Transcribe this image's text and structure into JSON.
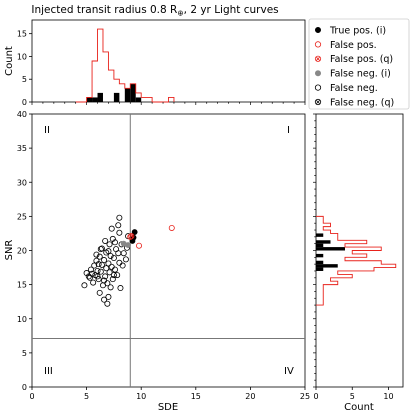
{
  "chart_data": {
    "type": "scatter",
    "title": "Injected transit radius 0.8 R⊕, 2 yr Light curves",
    "title_main": "Injected transit radius 0.8 R",
    "title_sub": "⊕",
    "title_tail": ", 2 yr Light curves",
    "main": {
      "xlabel": "SDE",
      "ylabel": "SNR",
      "xlim": [
        0,
        25
      ],
      "ylim": [
        0,
        40
      ],
      "xticks": [
        "0",
        "5",
        "10",
        "15",
        "20",
        "25"
      ],
      "yticks": [
        "0",
        "5",
        "10",
        "15",
        "20",
        "25",
        "30",
        "35",
        "40"
      ],
      "threshold_sde": 9.0,
      "threshold_snr": 7.1,
      "quadrant_labels": [
        "II",
        "I",
        "III",
        "IV"
      ]
    },
    "series": [
      {
        "name": "True pos. (i)",
        "marker": "filled",
        "color": "#000000",
        "points": [
          [
            9.2,
            21.4
          ],
          [
            9.3,
            21.9
          ],
          [
            9.4,
            22.7
          ]
        ]
      },
      {
        "name": "False pos.",
        "marker": "open",
        "color": "#e8221b",
        "points": [
          [
            9.0,
            22.0
          ],
          [
            9.8,
            20.7
          ],
          [
            12.8,
            23.3
          ]
        ]
      },
      {
        "name": "False pos. (q)",
        "marker": "x-open",
        "color": "#e8221b",
        "points": [
          [
            9.1,
            22.1
          ]
        ]
      },
      {
        "name": "False neg. (i)",
        "marker": "filled",
        "color": "#888888",
        "points": [
          [
            8.4,
            21.0
          ],
          [
            8.8,
            20.8
          ]
        ]
      },
      {
        "name": "False neg.",
        "marker": "open",
        "color": "#000000",
        "points": [
          [
            4.8,
            14.9
          ],
          [
            5.0,
            16.7
          ],
          [
            5.2,
            16.2
          ],
          [
            5.4,
            17.2
          ],
          [
            5.5,
            16.6
          ],
          [
            5.6,
            15.3
          ],
          [
            5.7,
            17.8
          ],
          [
            5.8,
            16.4
          ],
          [
            5.9,
            18.5
          ],
          [
            6.0,
            17.0
          ],
          [
            6.1,
            15.8
          ],
          [
            6.2,
            19.1
          ],
          [
            6.2,
            13.8
          ],
          [
            6.3,
            16.9
          ],
          [
            6.4,
            20.3
          ],
          [
            6.4,
            17.9
          ],
          [
            6.5,
            14.9
          ],
          [
            6.6,
            18.6
          ],
          [
            6.6,
            12.8
          ],
          [
            6.7,
            16.2
          ],
          [
            6.8,
            19.7
          ],
          [
            6.8,
            17.4
          ],
          [
            6.9,
            15.2
          ],
          [
            7.0,
            18.1
          ],
          [
            7.0,
            13.2
          ],
          [
            7.1,
            20.9
          ],
          [
            7.1,
            16.8
          ],
          [
            7.2,
            19.2
          ],
          [
            7.3,
            17.6
          ],
          [
            7.4,
            21.7
          ],
          [
            7.4,
            15.8
          ],
          [
            7.5,
            18.9
          ],
          [
            7.6,
            17.2
          ],
          [
            7.7,
            20.2
          ],
          [
            7.8,
            16.4
          ],
          [
            7.9,
            19.6
          ],
          [
            8.0,
            22.6
          ],
          [
            8.0,
            18.2
          ],
          [
            8.1,
            14.5
          ],
          [
            8.2,
            20.9
          ],
          [
            8.3,
            17.8
          ],
          [
            8.4,
            19.6
          ],
          [
            8.0,
            24.8
          ],
          [
            8.6,
            18.7
          ],
          [
            6.9,
            12.2
          ],
          [
            6.3,
            20.2
          ],
          [
            7.3,
            23.2
          ],
          [
            5.9,
            19.4
          ],
          [
            7.6,
            21.2
          ],
          [
            8.8,
            22.1
          ],
          [
            6.1,
            18.0
          ],
          [
            7.2,
            14.6
          ],
          [
            6.7,
            21.4
          ],
          [
            7.9,
            23.7
          ],
          [
            8.7,
            20.4
          ],
          [
            5.3,
            16.0
          ],
          [
            6.6,
            15.6
          ],
          [
            7.5,
            16.4
          ],
          [
            6.0,
            16.2
          ],
          [
            7.0,
            19.9
          ]
        ]
      },
      {
        "name": "False neg. (q)",
        "marker": "x-open",
        "color": "#000000",
        "points": []
      }
    ],
    "top_hist": {
      "ylabel": "Count",
      "yticks": [
        "0",
        "5",
        "10",
        "15"
      ],
      "ylim": [
        0,
        18
      ],
      "bin_edges": [
        4.0,
        4.5,
        5.0,
        5.5,
        6.0,
        6.5,
        7.0,
        7.5,
        8.0,
        8.5,
        9.0,
        9.5,
        10.0,
        10.5,
        11.0,
        11.5,
        12.0,
        12.5,
        13.0
      ],
      "counts_all": [
        0,
        0,
        1,
        9,
        16,
        11,
        7,
        5,
        4,
        3,
        4,
        2,
        1,
        1,
        0,
        0,
        0,
        1
      ],
      "counts_true": [
        0,
        0,
        1,
        1,
        2,
        0,
        0,
        2,
        0,
        3,
        4,
        1,
        0,
        0,
        0,
        0,
        0,
        0
      ]
    },
    "right_hist": {
      "xlabel": "Count",
      "xticks": [
        "0",
        "5",
        "10"
      ],
      "xlim": [
        0,
        12
      ],
      "bin_edges": [
        12.0,
        12.5,
        13.0,
        13.5,
        14.0,
        14.5,
        15.0,
        15.5,
        16.0,
        16.5,
        17.0,
        17.5,
        18.0,
        18.5,
        19.0,
        19.5,
        20.0,
        20.5,
        21.0,
        21.5,
        22.0,
        22.5,
        23.0,
        23.5,
        24.0,
        24.5,
        25.0
      ],
      "counts_all": [
        1,
        1,
        1,
        1,
        1,
        1,
        3,
        2,
        5,
        3,
        8,
        11,
        9,
        4,
        7,
        5,
        9,
        4,
        7,
        3,
        3,
        2,
        1,
        2,
        1,
        1
      ],
      "counts_true": [
        0,
        0,
        0,
        0,
        0,
        0,
        0,
        0,
        0,
        0,
        1,
        3,
        1,
        0,
        1,
        0,
        4,
        1,
        2,
        0,
        1,
        0,
        0,
        0,
        0,
        0
      ]
    },
    "legend_position": "top-right"
  }
}
